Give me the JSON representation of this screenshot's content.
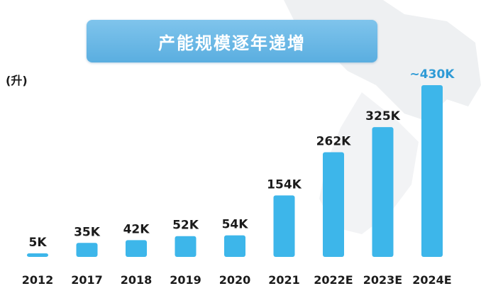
{
  "unit_label": "(升)",
  "chart_data": {
    "type": "bar",
    "title": "产能规模逐年递增",
    "categories": [
      "2012",
      "2017",
      "2018",
      "2019",
      "2020",
      "2021",
      "2022E",
      "2023E",
      "2024E"
    ],
    "values": [
      5,
      35,
      42,
      52,
      54,
      154,
      262,
      325,
      430
    ],
    "data_labels": [
      "5K",
      "35K",
      "42K",
      "52K",
      "54K",
      "154K",
      "262K",
      "325K",
      "~430K"
    ],
    "ylabel": "(升)",
    "ylim": [
      0,
      430
    ],
    "grid": false,
    "bar_color": "#3db6ea",
    "highlight_label_color": "#2f9bd6",
    "label_color": "#1b1b1b"
  }
}
